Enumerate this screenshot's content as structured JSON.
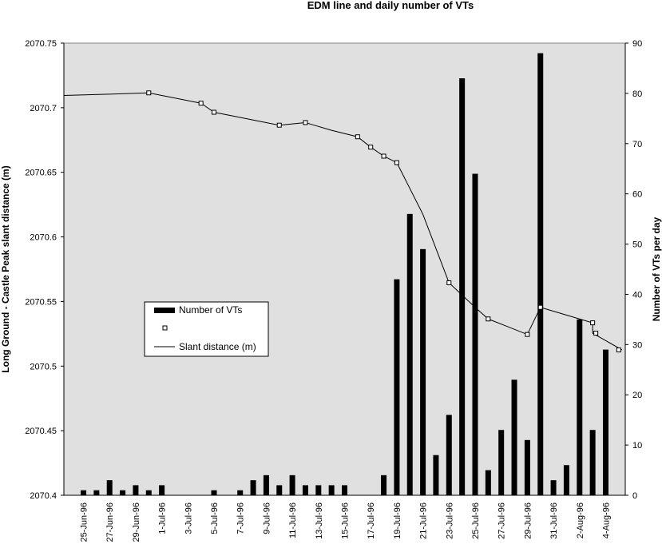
{
  "chart_data": {
    "type": "bar",
    "title": "EDM line and daily number of VTs",
    "ylabel_left": "Long Ground - Castle Peak slant distance (m)",
    "ylabel_right": "Number of VTs per day",
    "xlabel": "",
    "ylim_left": [
      2070.4,
      2070.75
    ],
    "ylim_right": [
      0,
      90
    ],
    "yticks_left": [
      "2070.4",
      "2070.45",
      "2070.5",
      "2070.55",
      "2070.6",
      "2070.65",
      "2070.7",
      "2070.75"
    ],
    "yticks_right": [
      "0",
      "10",
      "20",
      "30",
      "40",
      "50",
      "60",
      "70",
      "80",
      "90"
    ],
    "x_tick_labels": [
      "25-Jun-96",
      "27-Jun-96",
      "29-Jun-96",
      "1-Jul-96",
      "3-Jul-96",
      "5-Jul-96",
      "7-Jul-96",
      "9-Jul-96",
      "11-Jul-96",
      "13-Jul-96",
      "15-Jul-96",
      "17-Jul-96",
      "19-Jul-96",
      "21-Jul-96",
      "23-Jul-96",
      "25-Jul-96",
      "27-Jul-96",
      "29-Jul-96",
      "31-Jul-96",
      "2-Aug-96",
      "4-Aug-96"
    ],
    "grid": false,
    "legend_position": "center-left",
    "colors": {
      "plot_bg": "#e0e0e0",
      "bars": "#000000",
      "line": "#000000",
      "markers": "#ffffff"
    },
    "series": [
      {
        "name": "Number of VTs",
        "axis": "right",
        "type": "bar",
        "dates": [
          "25-Jun-96",
          "26-Jun-96",
          "27-Jun-96",
          "28-Jun-96",
          "29-Jun-96",
          "30-Jun-96",
          "1-Jul-96",
          "2-Jul-96",
          "3-Jul-96",
          "4-Jul-96",
          "5-Jul-96",
          "6-Jul-96",
          "7-Jul-96",
          "8-Jul-96",
          "9-Jul-96",
          "10-Jul-96",
          "11-Jul-96",
          "12-Jul-96",
          "13-Jul-96",
          "14-Jul-96",
          "15-Jul-96",
          "16-Jul-96",
          "17-Jul-96",
          "18-Jul-96",
          "19-Jul-96",
          "20-Jul-96",
          "21-Jul-96",
          "22-Jul-96",
          "23-Jul-96",
          "24-Jul-96",
          "25-Jul-96",
          "26-Jul-96",
          "27-Jul-96",
          "28-Jul-96",
          "29-Jul-96",
          "30-Jul-96",
          "31-Jul-96",
          "1-Aug-96",
          "2-Aug-96",
          "3-Aug-96",
          "4-Aug-96",
          "5-Aug-96"
        ],
        "values": [
          1,
          1,
          3,
          1,
          2,
          1,
          2,
          0,
          0,
          0,
          1,
          0,
          1,
          3,
          4,
          2,
          4,
          2,
          2,
          2,
          2,
          0,
          0,
          4,
          43,
          56,
          49,
          8,
          16,
          83,
          64,
          5,
          13,
          23,
          11,
          88,
          3,
          6,
          35,
          13,
          29,
          0
        ]
      },
      {
        "name": "",
        "axis": "left",
        "type": "marker",
        "dates": [
          "30-Jun-96",
          "4-Jul-96",
          "5-Jul-96",
          "10-Jul-96",
          "12-Jul-96",
          "16-Jul-96",
          "17-Jul-96",
          "18-Jul-96",
          "19-Jul-96",
          "23-Jul-96",
          "26-Jul-96",
          "29-Jul-96",
          "30-Jul-96",
          "3-Aug-96",
          "3-Aug-96",
          "5-Aug-96"
        ],
        "values": [
          2070.7115,
          2070.7035,
          2070.6965,
          2070.6865,
          2070.6885,
          2070.6775,
          2070.6695,
          2070.6625,
          2070.6575,
          2070.5645,
          2070.5365,
          2070.5245,
          2070.5455,
          2070.5335,
          2070.5255,
          2070.5125
        ]
      },
      {
        "name": "Slant distance (m)",
        "axis": "left",
        "type": "line",
        "dates": [
          "24-Jun-96",
          "27-Jun-96",
          "30-Jun-96",
          "4-Jul-96",
          "5-Jul-96",
          "8-Jul-96",
          "10-Jul-96",
          "12-Jul-96",
          "14-Jul-96",
          "16-Jul-96",
          "17-Jul-96",
          "18-Jul-96",
          "19-Jul-96",
          "21-Jul-96",
          "23-Jul-96",
          "25-Jul-96",
          "26-Jul-96",
          "29-Jul-96",
          "30-Jul-96",
          "3-Aug-96",
          "3-Aug-96",
          "5-Aug-96"
        ],
        "values": [
          2070.7095,
          2070.7105,
          2070.7115,
          2070.7035,
          2070.6965,
          2070.6905,
          2070.6865,
          2070.6885,
          2070.6825,
          2070.6775,
          2070.6695,
          2070.6625,
          2070.6575,
          2070.6175,
          2070.5645,
          2070.5455,
          2070.5365,
          2070.5245,
          2070.5455,
          2070.5335,
          2070.5255,
          2070.5125
        ]
      }
    ]
  }
}
